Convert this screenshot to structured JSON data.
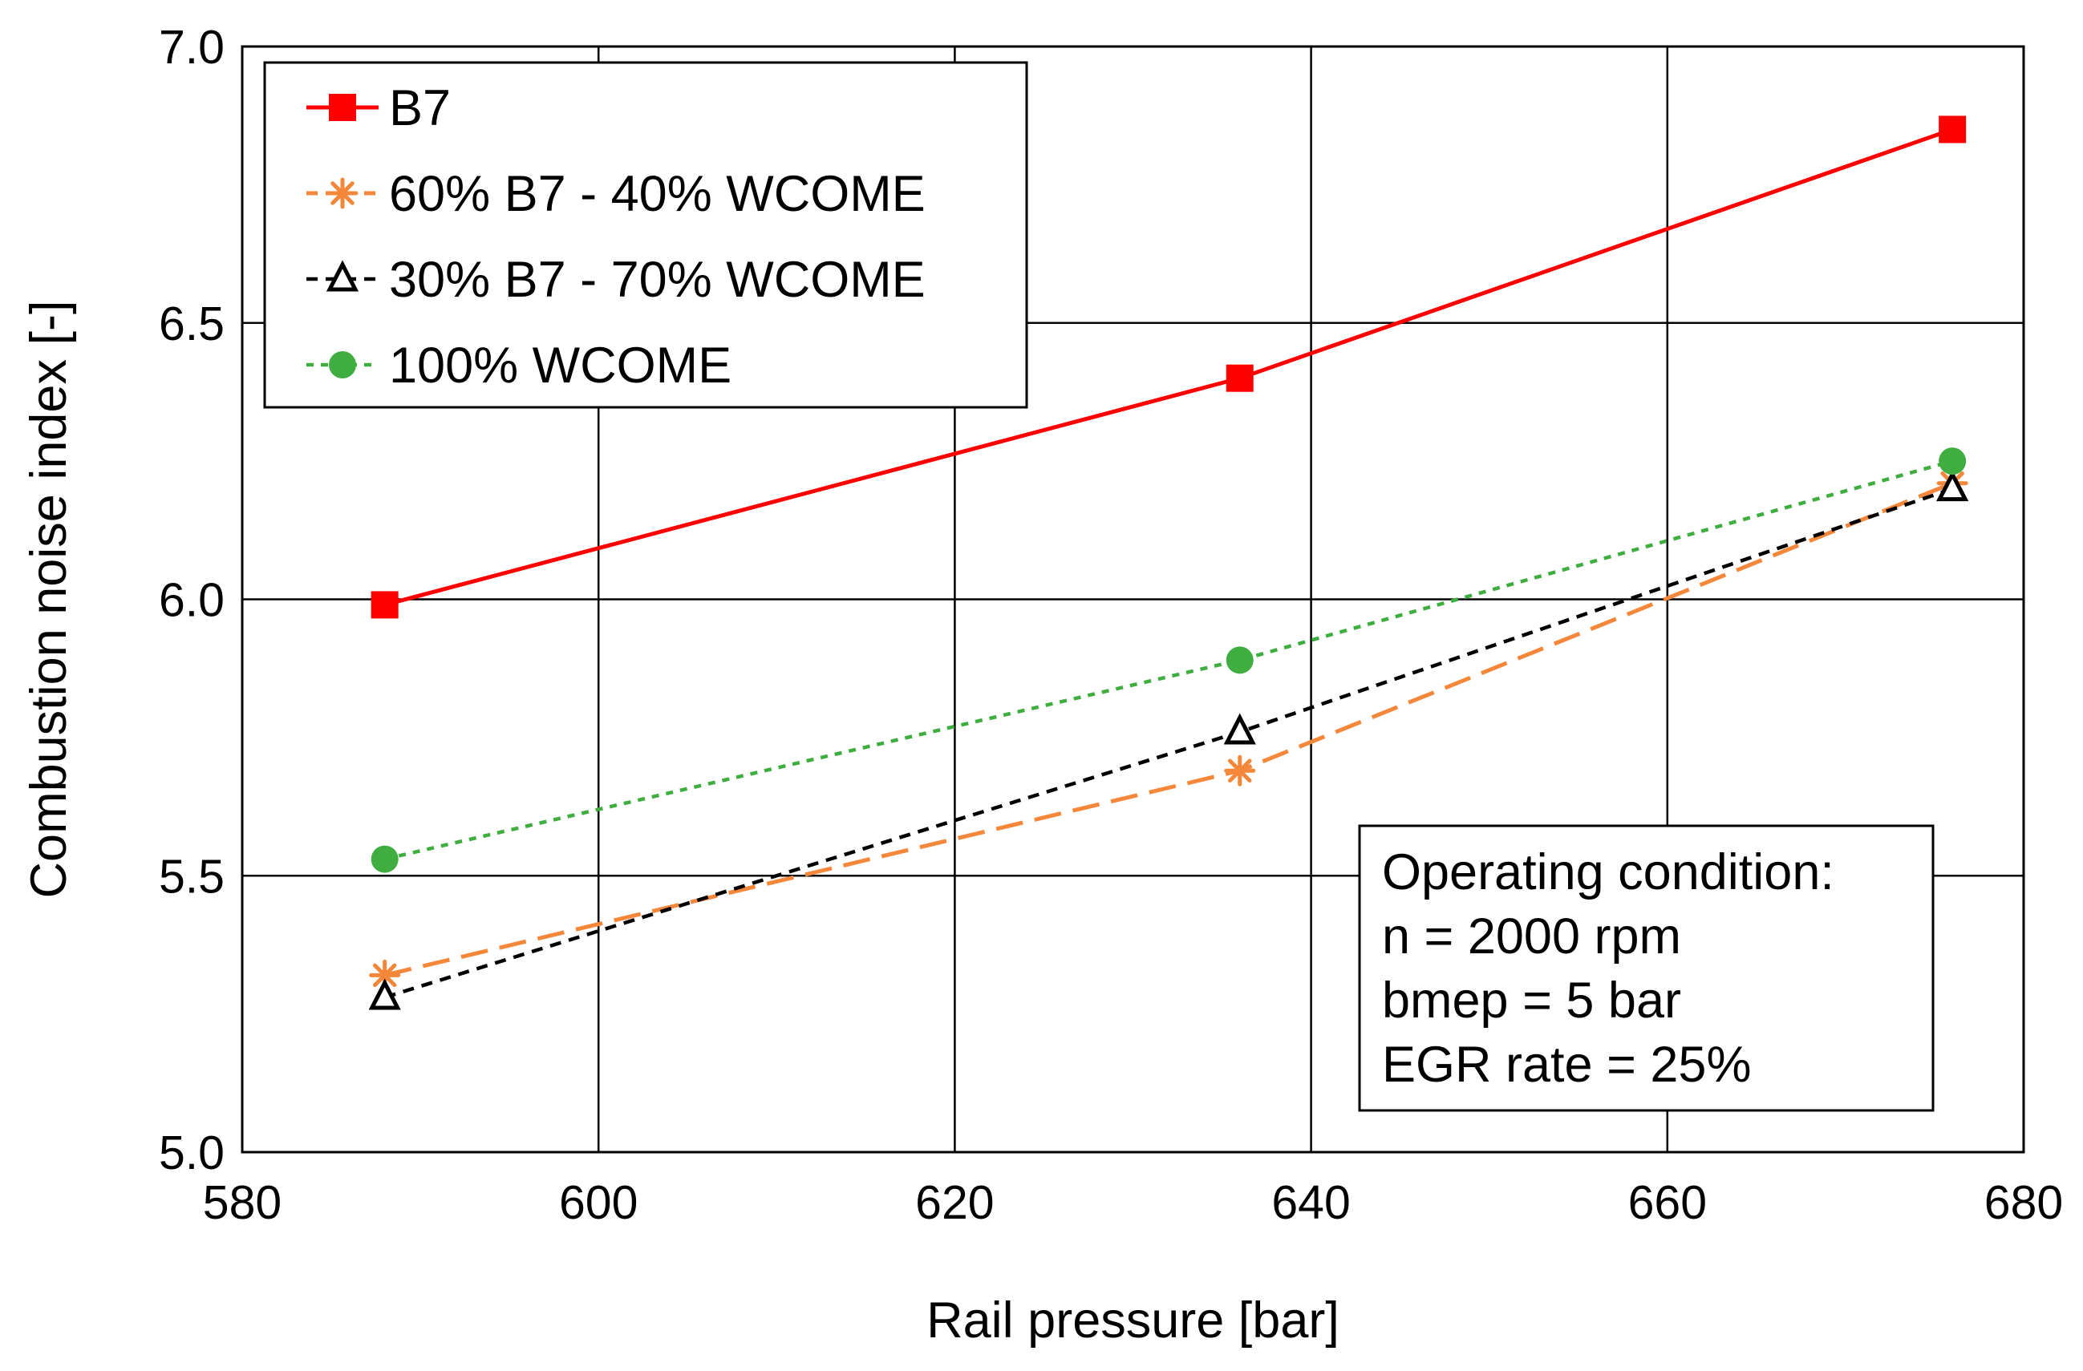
{
  "chart_data": {
    "type": "line",
    "title": "",
    "xlabel": "Rail pressure [bar]",
    "ylabel": "Combustion noise index [-]",
    "xlim": [
      580,
      680
    ],
    "ylim": [
      5.0,
      7.0
    ],
    "xticks": [
      "580",
      "600",
      "620",
      "640",
      "660",
      "680"
    ],
    "yticks": [
      "5.0",
      "5.5",
      "6.0",
      "6.5",
      "7.0"
    ],
    "grid": true,
    "legend_position": "top-left",
    "x": [
      588,
      636,
      676
    ],
    "series": [
      {
        "name": "B7",
        "values": [
          5.99,
          6.4,
          6.85
        ],
        "color": "#ff0000",
        "marker": "square",
        "dash": "solid"
      },
      {
        "name": "60% B7 - 40% WCOME",
        "values": [
          5.32,
          5.69,
          6.21
        ],
        "color": "#f4873a",
        "marker": "asterisk",
        "dash": "long-dash"
      },
      {
        "name": "30% B7 - 70% WCOME",
        "values": [
          5.28,
          5.76,
          6.2
        ],
        "color": "#000000",
        "marker": "open-triangle",
        "dash": "dash"
      },
      {
        "name": "100% WCOME",
        "values": [
          5.53,
          5.89,
          6.25
        ],
        "color": "#3fad3f",
        "marker": "circle",
        "dash": "dot"
      }
    ],
    "annotation": {
      "lines": [
        "Operating condition:",
        "n = 2000 rpm",
        "bmep = 5 bar",
        "EGR rate = 25%"
      ]
    }
  }
}
